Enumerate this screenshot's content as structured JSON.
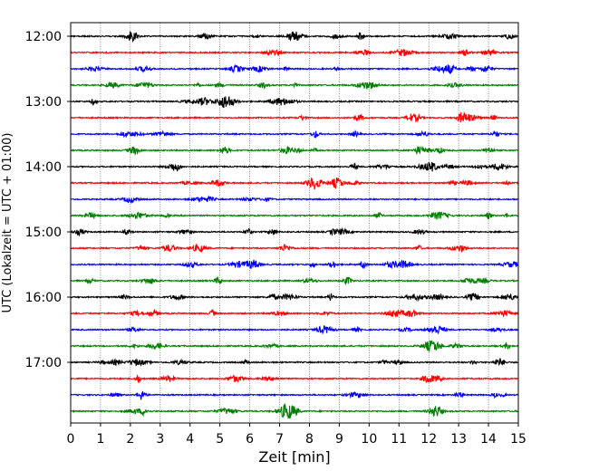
{
  "chart_data": {
    "type": "line",
    "chart_kind": "helicorder seismogram",
    "title": "",
    "xlabel": "Zeit  [min]",
    "ylabel": "UTC (Lokalzeit = UTC + 01:00)",
    "xlim": [
      0,
      15
    ],
    "x_ticks": [
      0,
      1,
      2,
      3,
      4,
      5,
      6,
      7,
      8,
      9,
      10,
      11,
      12,
      13,
      14,
      15
    ],
    "x_tick_labels": [
      "0",
      "1",
      "2",
      "3",
      "4",
      "5",
      "6",
      "7",
      "8",
      "9",
      "10",
      "11",
      "12",
      "13",
      "14",
      "15"
    ],
    "y_tick_labels": [
      "12:00",
      "13:00",
      "14:00",
      "15:00",
      "16:00",
      "17:00"
    ],
    "trace_start_times": [
      "12:00",
      "12:15",
      "12:30",
      "12:45",
      "13:00",
      "13:15",
      "13:30",
      "13:45",
      "14:00",
      "14:15",
      "14:30",
      "14:45",
      "15:00",
      "15:15",
      "15:30",
      "15:45",
      "16:00",
      "16:15",
      "16:30",
      "16:45",
      "17:00",
      "17:15",
      "17:30",
      "17:45"
    ],
    "trace_minutes": 15,
    "grid": "vertical dotted lines at each minute",
    "color_cycle": [
      "#000000",
      "#ff0000",
      "#0000ff",
      "#007f00"
    ]
  }
}
